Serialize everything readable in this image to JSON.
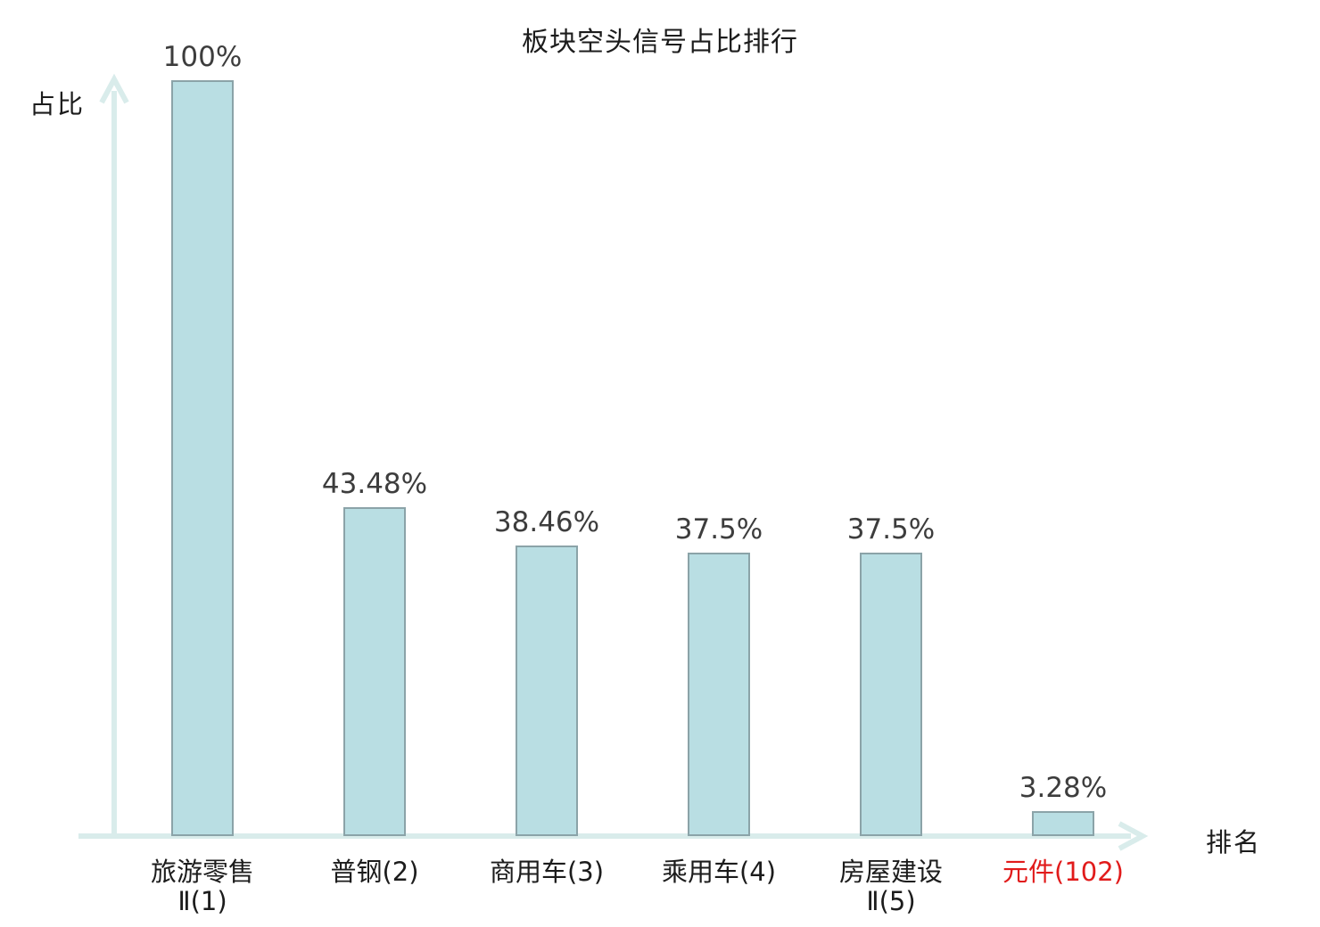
{
  "chart_data": {
    "type": "bar",
    "title": "板块空头信号占比排行",
    "ylabel": "占比",
    "xlabel": "排名",
    "ylim": [
      0,
      100
    ],
    "grid": false,
    "legend": false,
    "categories": [
      "旅游零售Ⅱ(1)",
      "普钢(2)",
      "商用车(3)",
      "乘用车(4)",
      "房屋建设Ⅱ(5)",
      "元件(102)"
    ],
    "values": [
      100,
      43.48,
      38.46,
      37.5,
      37.5,
      3.28
    ],
    "bars": [
      {
        "category_lines": [
          "旅游零售",
          "Ⅱ(1)"
        ],
        "value": 100,
        "value_label": "100%",
        "highlight": false
      },
      {
        "category_lines": [
          "普钢(2)"
        ],
        "value": 43.48,
        "value_label": "43.48%",
        "highlight": false
      },
      {
        "category_lines": [
          "商用车(3)"
        ],
        "value": 38.46,
        "value_label": "38.46%",
        "highlight": false
      },
      {
        "category_lines": [
          "乘用车(4)"
        ],
        "value": 37.5,
        "value_label": "37.5%",
        "highlight": false
      },
      {
        "category_lines": [
          "房屋建设",
          "Ⅱ(5)"
        ],
        "value": 37.5,
        "value_label": "37.5%",
        "highlight": false
      },
      {
        "category_lines": [
          "元件(102)"
        ],
        "value": 3.28,
        "value_label": "3.28%",
        "highlight": true
      }
    ],
    "colors": {
      "bar_fill": "#b9dee3",
      "bar_border": "#8ba3a8",
      "axis": "#d9eceb",
      "value_text": "#3d3d3d",
      "label_text": "#1c1c1c",
      "highlight_text": "#e11b1b"
    }
  }
}
